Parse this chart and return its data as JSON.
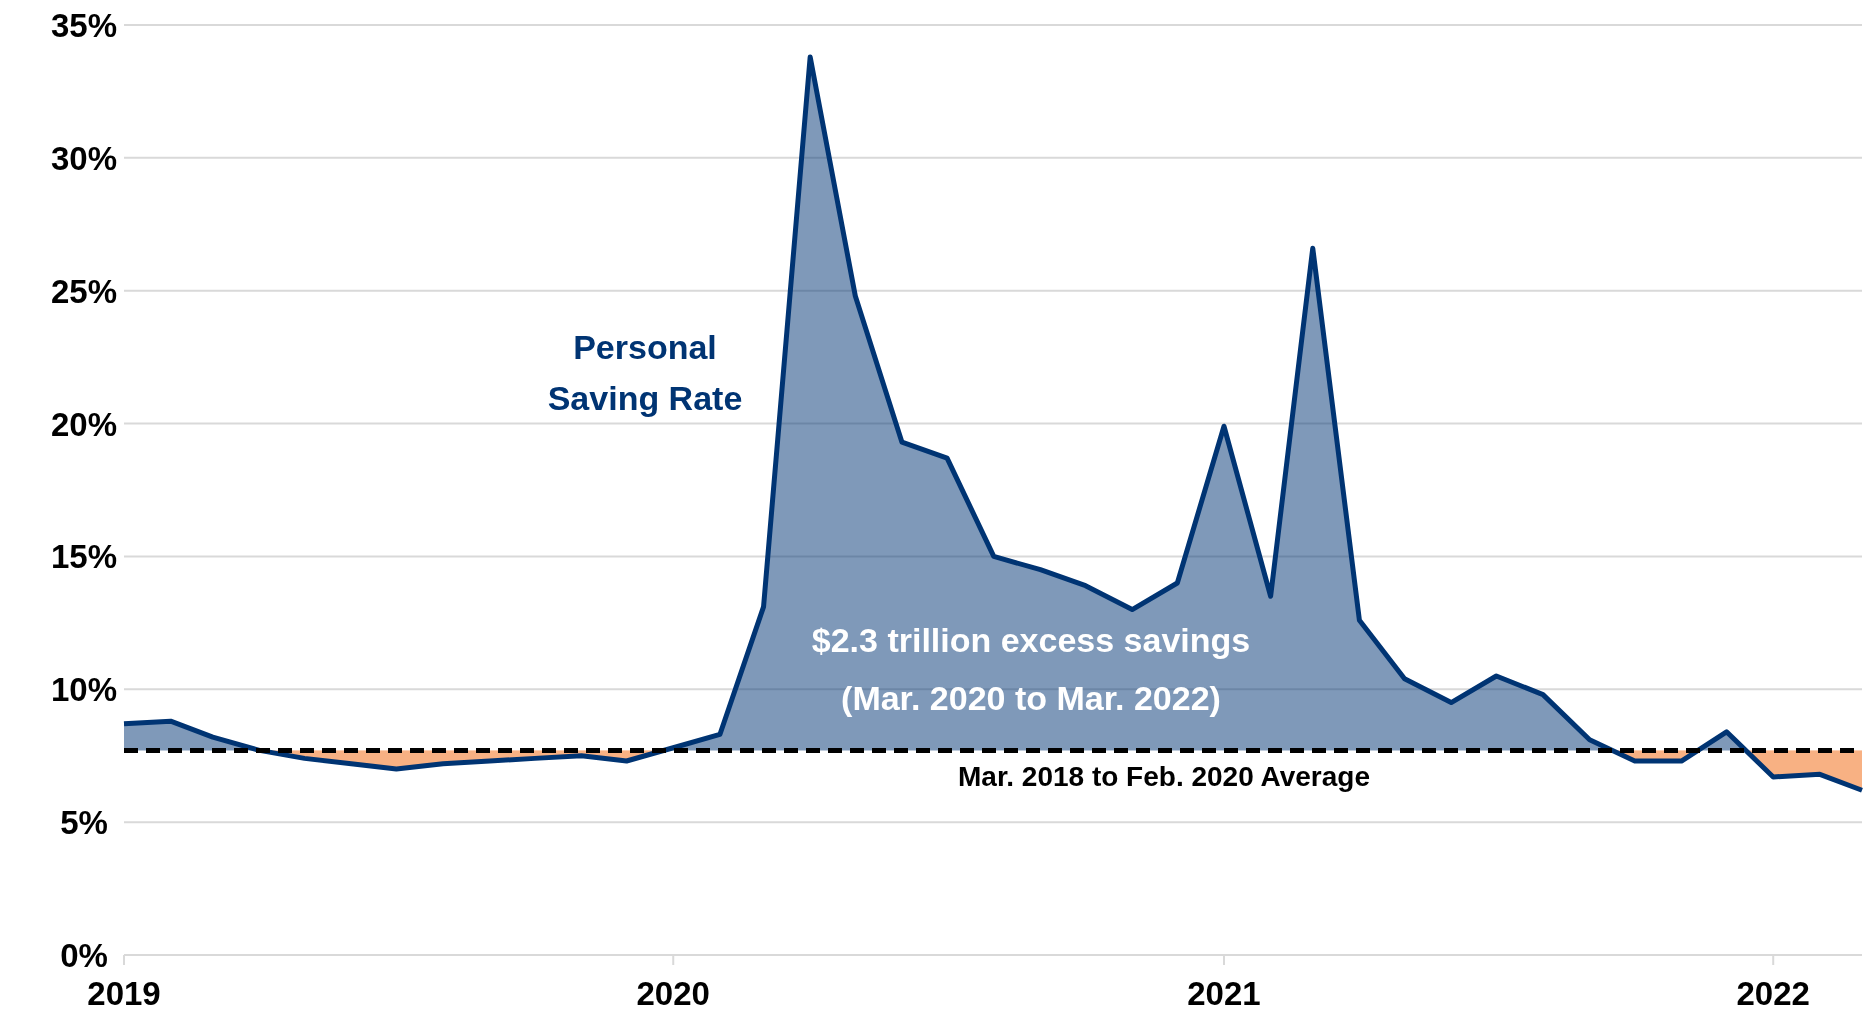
{
  "chart_data": {
    "type": "area",
    "x": [
      "2019-01",
      "2019-02",
      "2019-03",
      "2019-04",
      "2019-05",
      "2019-06",
      "2019-07",
      "2019-08",
      "2019-09",
      "2019-10",
      "2019-11",
      "2019-12",
      "2020-01",
      "2020-02",
      "2020-03",
      "2020-04",
      "2020-05",
      "2020-06",
      "2020-07",
      "2020-08",
      "2020-09",
      "2020-10",
      "2020-11",
      "2020-12",
      "2021-01",
      "2021-02",
      "2021-03",
      "2021-04",
      "2021-05",
      "2021-06",
      "2021-07",
      "2021-08",
      "2021-09",
      "2021-10",
      "2021-11",
      "2021-12",
      "2022-01",
      "2022-02",
      "2022-03"
    ],
    "series": [
      {
        "name": "Personal Saving Rate",
        "color": "#003473",
        "values": [
          8.7,
          8.8,
          8.2,
          7.7,
          7.4,
          7.2,
          7.0,
          7.2,
          7.3,
          7.4,
          7.5,
          7.3,
          7.8,
          8.3,
          13.1,
          33.8,
          24.8,
          19.3,
          18.7,
          15.0,
          14.5,
          13.9,
          13.0,
          14.0,
          19.9,
          13.5,
          26.6,
          12.6,
          10.4,
          9.5,
          10.5,
          9.8,
          8.1,
          7.3,
          7.3,
          8.4,
          6.7,
          6.8,
          6.2
        ]
      }
    ],
    "xlim": [
      "2019-01",
      "2022-03"
    ],
    "xticks": [
      "2019",
      "2020",
      "2021",
      "2022"
    ],
    "ylim": [
      0,
      35
    ],
    "yticks": [
      {
        "value": 0,
        "label": "0%"
      },
      {
        "value": 5,
        "label": "5%"
      },
      {
        "value": 10,
        "label": "10%"
      },
      {
        "value": 15,
        "label": "15%"
      },
      {
        "value": 20,
        "label": "20%"
      },
      {
        "value": 25,
        "label": "25%"
      },
      {
        "value": 30,
        "label": "30%"
      },
      {
        "value": 35,
        "label": "35%"
      }
    ],
    "grid": "y",
    "ref_lines": [
      {
        "axis": "y",
        "value": 7.7,
        "label": "Mar. 2018 to Feb. 2020 Average",
        "color": "#000000",
        "line_style": "dashed"
      }
    ],
    "annotations": [
      "$2.3 trillion excess savings\n(Mar. 2020 to Mar. 2022)"
    ]
  }
}
